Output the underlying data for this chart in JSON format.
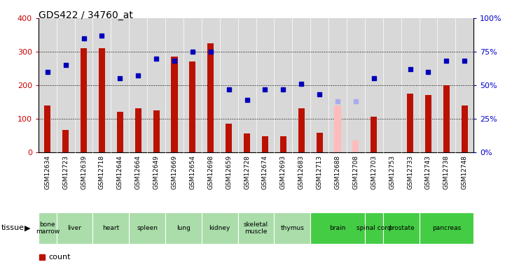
{
  "title": "GDS422 / 34760_at",
  "gsm_labels": [
    "GSM12634",
    "GSM12723",
    "GSM12639",
    "GSM12718",
    "GSM12644",
    "GSM12664",
    "GSM12649",
    "GSM12669",
    "GSM12654",
    "GSM12698",
    "GSM12659",
    "GSM12728",
    "GSM12674",
    "GSM12693",
    "GSM12683",
    "GSM12713",
    "GSM12688",
    "GSM12708",
    "GSM12703",
    "GSM12753",
    "GSM12733",
    "GSM12743",
    "GSM12738",
    "GSM12748"
  ],
  "bar_values": [
    140,
    65,
    310,
    310,
    120,
    130,
    125,
    285,
    270,
    325,
    85,
    55,
    48,
    48,
    130,
    58,
    null,
    null,
    105,
    null,
    175,
    170,
    200,
    140
  ],
  "bar_absent_values": [
    null,
    null,
    null,
    null,
    null,
    null,
    null,
    null,
    null,
    null,
    null,
    null,
    null,
    null,
    null,
    null,
    140,
    35,
    null,
    null,
    null,
    null,
    null,
    null
  ],
  "dot_values": [
    60,
    65,
    85,
    87,
    55,
    57,
    70,
    68,
    75,
    75,
    47,
    39,
    47,
    47,
    51,
    43,
    null,
    null,
    55,
    null,
    62,
    60,
    68,
    68
  ],
  "dot_absent_values": [
    null,
    null,
    null,
    null,
    null,
    null,
    null,
    null,
    null,
    null,
    null,
    null,
    null,
    null,
    null,
    null,
    38,
    38,
    null,
    null,
    null,
    null,
    null,
    null
  ],
  "tissues": [
    {
      "label": "bone\nmarrow",
      "start": 0,
      "end": 1,
      "color": "#aaddaa"
    },
    {
      "label": "liver",
      "start": 1,
      "end": 3,
      "color": "#aaddaa"
    },
    {
      "label": "heart",
      "start": 3,
      "end": 5,
      "color": "#aaddaa"
    },
    {
      "label": "spleen",
      "start": 5,
      "end": 7,
      "color": "#aaddaa"
    },
    {
      "label": "lung",
      "start": 7,
      "end": 9,
      "color": "#aaddaa"
    },
    {
      "label": "kidney",
      "start": 9,
      "end": 11,
      "color": "#aaddaa"
    },
    {
      "label": "skeletal\nmuscle",
      "start": 11,
      "end": 13,
      "color": "#aaddaa"
    },
    {
      "label": "thymus",
      "start": 13,
      "end": 15,
      "color": "#aaddaa"
    },
    {
      "label": "brain",
      "start": 15,
      "end": 18,
      "color": "#44cc44"
    },
    {
      "label": "spinal cord",
      "start": 18,
      "end": 19,
      "color": "#44cc44"
    },
    {
      "label": "prostate",
      "start": 19,
      "end": 21,
      "color": "#44cc44"
    },
    {
      "label": "pancreas",
      "start": 21,
      "end": 24,
      "color": "#44cc44"
    }
  ],
  "ylim_left": [
    0,
    400
  ],
  "ylim_right": [
    0,
    100
  ],
  "bar_color": "#bb1100",
  "bar_absent_color": "#ffbbbb",
  "dot_color": "#0000bb",
  "dot_absent_color": "#aaaaee",
  "bg_color": "#d8d8d8",
  "left_axis_color": "#cc0000",
  "right_axis_color": "#0000cc"
}
